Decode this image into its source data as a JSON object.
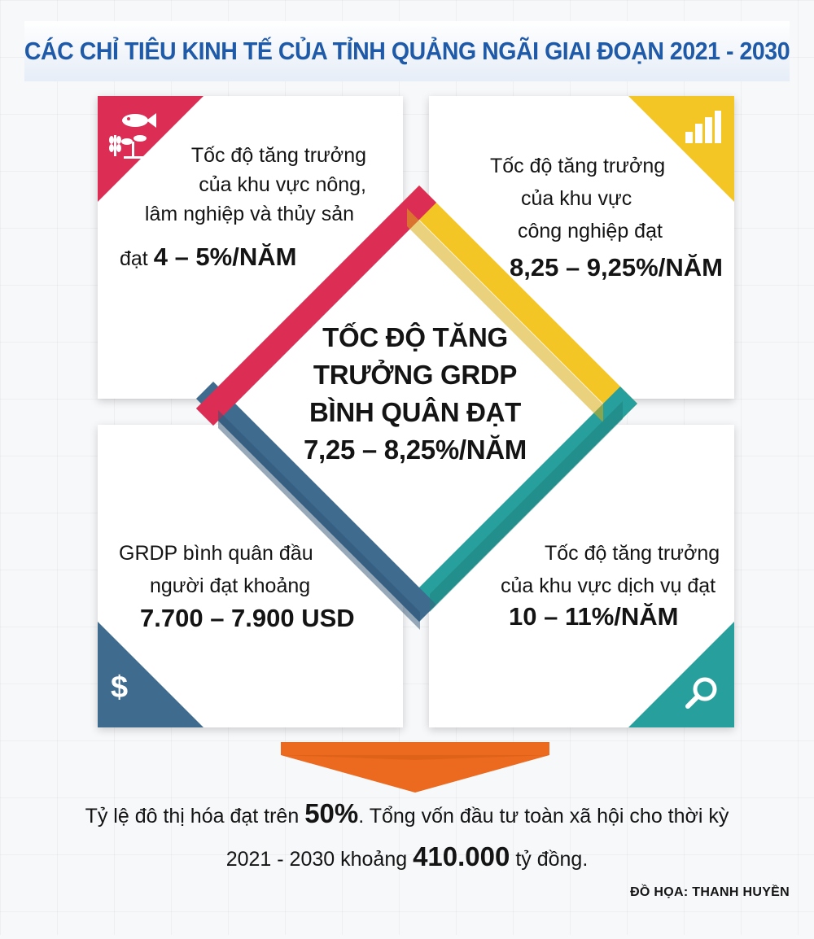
{
  "title": "CÁC CHỈ TIÊU KINH TẾ CỦA TỈNH QUẢNG NGÃI GIAI ĐOẠN 2021 - 2030",
  "colors": {
    "title": "#1f5aa8",
    "agri": "#dc2d55",
    "industry": "#f3c625",
    "services": "#279f9c",
    "grdp_per_capita": "#3f6b8f",
    "arrow": "#ec6a1f"
  },
  "agriculture": {
    "icon": "fish-plant-icon",
    "lines": [
      "Tốc độ tăng trưởng",
      "của khu vực nông,",
      "lâm nghiệp và thủy sản"
    ],
    "prefix": "đạt",
    "value": "4 – 5%/NĂM"
  },
  "industry": {
    "icon": "bar-chart-icon",
    "lines": [
      "Tốc độ tăng trưởng",
      "của khu vực",
      "công nghiệp đạt"
    ],
    "value": "8,25 – 9,25%/NĂM"
  },
  "center": {
    "lines": [
      "TỐC ĐỘ TĂNG",
      "TRƯỞNG GRDP",
      "BÌNH QUÂN ĐẠT",
      "7,25 – 8,25%/NĂM"
    ]
  },
  "grdp_per_capita": {
    "icon": "dollar-icon",
    "lines": [
      "GRDP bình quân đầu",
      "người đạt khoảng"
    ],
    "value": "7.700 – 7.900 USD"
  },
  "services": {
    "icon": "magnifier-icon",
    "lines": [
      "Tốc độ tăng trưởng",
      "của khu vực dịch vụ đạt"
    ],
    "value": "10 – 11%/NĂM"
  },
  "bottom": {
    "p1": "Tỷ lệ đô thị hóa đạt trên ",
    "v1": "50%",
    "p2": ". Tổng vốn đầu tư toàn xã hội cho thời kỳ",
    "p3": "2021 - 2030 khoảng ",
    "v2": "410.000",
    "p4": " tỷ đồng."
  },
  "credit": "ĐỒ HỌA: THANH HUYỀN"
}
